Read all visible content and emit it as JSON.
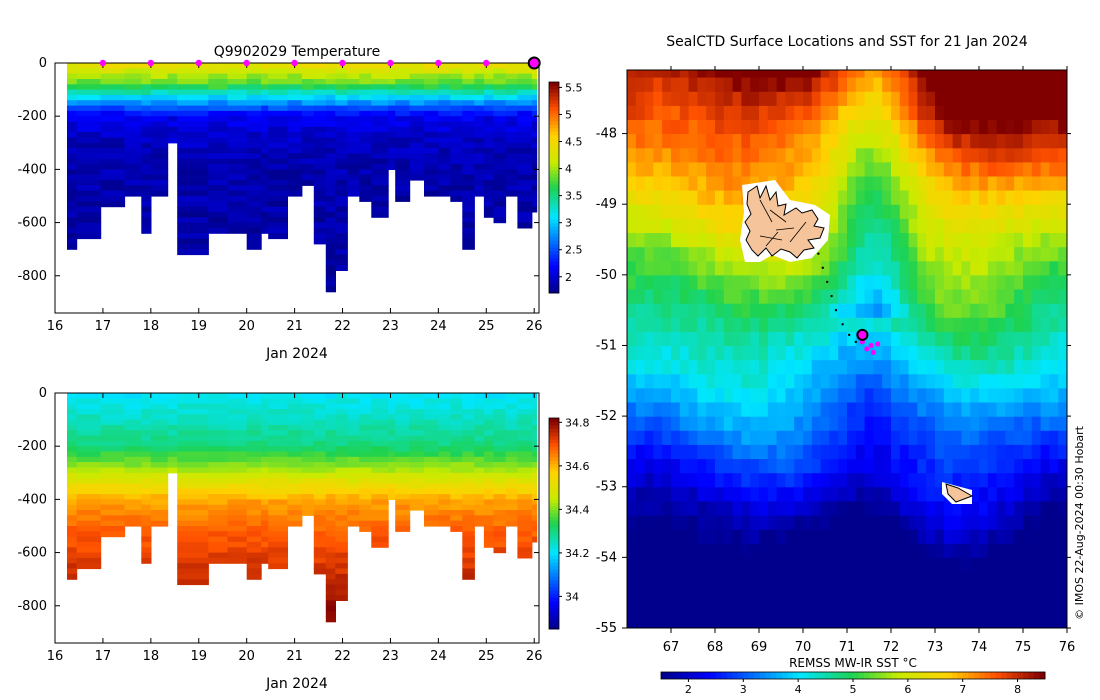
{
  "chart_data": [
    {
      "type": "heatmap",
      "id": "temperature",
      "title": "Q9902029  Temperature",
      "xlabel": "Jan 2024",
      "ylabel": "",
      "xlim": [
        16,
        26.1
      ],
      "ylim": [
        -940,
        0
      ],
      "xticks": [
        "16",
        "17",
        "18",
        "19",
        "20",
        "21",
        "22",
        "23",
        "24",
        "25",
        "26"
      ],
      "yticks": [
        "0",
        "-200",
        "-400",
        "-600",
        "-800"
      ],
      "colorbar": {
        "min": 1.7,
        "max": 5.6,
        "ticks": [
          "2",
          "2.5",
          "3",
          "3.5",
          "4",
          "4.5",
          "5",
          "5.5"
        ],
        "tick_values": [
          2,
          2.5,
          3,
          3.5,
          4,
          4.5,
          5,
          5.5
        ]
      },
      "marker_days": [
        17,
        18,
        19,
        20,
        21,
        22,
        23,
        24,
        25
      ],
      "current_marker_day": 26,
      "profile_starts": [
        16.25,
        16.45,
        16.95,
        17.45,
        17.8,
        18.0,
        18.35,
        18.55,
        19.2,
        19.6,
        20.0,
        20.3,
        20.45,
        20.85,
        21.15,
        21.4,
        21.65,
        21.85,
        22.1,
        22.35,
        22.6,
        22.95,
        23.1,
        23.4,
        23.7,
        24.0,
        24.25,
        24.5,
        24.75,
        24.95,
        25.15,
        25.4,
        25.65,
        25.95
      ],
      "profile_depths": [
        700,
        650,
        540,
        500,
        630,
        500,
        300,
        720,
        630,
        640,
        700,
        630,
        650,
        500,
        460,
        680,
        850,
        780,
        500,
        520,
        580,
        400,
        510,
        440,
        500,
        500,
        520,
        700,
        490,
        580,
        600,
        500,
        620,
        560
      ],
      "temperature_profile_depths": [
        0,
        40,
        80,
        120,
        160,
        200,
        300,
        400,
        600,
        900
      ],
      "temperature_profile_values": [
        4.5,
        4.1,
        3.8,
        3.2,
        2.6,
        2.1,
        1.9,
        1.85,
        1.8,
        1.75
      ]
    },
    {
      "type": "heatmap",
      "id": "salinity",
      "title": "",
      "xlabel": "Jan 2024",
      "ylabel": "",
      "xlim": [
        16,
        26.1
      ],
      "ylim": [
        -940,
        0
      ],
      "xticks": [
        "16",
        "17",
        "18",
        "19",
        "20",
        "21",
        "22",
        "23",
        "24",
        "25",
        "26"
      ],
      "yticks": [
        "0",
        "-200",
        "-400",
        "-600",
        "-800"
      ],
      "colorbar": {
        "min": 33.85,
        "max": 34.82,
        "ticks": [
          "34",
          "34.2",
          "34.4",
          "34.6",
          "34.8"
        ],
        "tick_values": [
          34,
          34.2,
          34.4,
          34.6,
          34.8
        ]
      },
      "salinity_profile_depths": [
        0,
        100,
        200,
        300,
        400,
        500,
        600,
        700,
        800,
        900
      ],
      "salinity_profile_values": [
        34.2,
        34.25,
        34.3,
        34.45,
        34.62,
        34.68,
        34.72,
        34.76,
        34.8,
        34.82
      ]
    },
    {
      "type": "heatmap",
      "id": "sst_map",
      "title": "SealCTD Surface Locations and SST for 21 Jan 2024",
      "xlabel": "REMSS MW-IR SST °C",
      "xlim": [
        66,
        76
      ],
      "ylim": [
        -55,
        -47.1
      ],
      "xticks": [
        "67",
        "68",
        "69",
        "70",
        "71",
        "72",
        "73",
        "74",
        "75",
        "76"
      ],
      "yticks": [
        "-48",
        "-49",
        "-50",
        "-51",
        "-52",
        "-53",
        "-54",
        "-55"
      ],
      "colorbar": {
        "min": 1.5,
        "max": 8.5,
        "ticks": [
          "2",
          "3",
          "4",
          "5",
          "6",
          "7",
          "8"
        ],
        "tick_values": [
          2,
          3,
          4,
          5,
          6,
          7,
          8
        ]
      },
      "track": [
        [
          70.35,
          -49.7
        ],
        [
          70.45,
          -49.9
        ],
        [
          70.55,
          -50.1
        ],
        [
          70.65,
          -50.3
        ],
        [
          70.75,
          -50.5
        ],
        [
          70.9,
          -50.7
        ],
        [
          71.05,
          -50.85
        ],
        [
          71.2,
          -50.95
        ]
      ],
      "recent_positions": [
        [
          71.35,
          -50.95
        ],
        [
          71.45,
          -51.05
        ],
        [
          71.55,
          -51.0
        ],
        [
          71.6,
          -51.1
        ],
        [
          71.7,
          -50.98
        ]
      ],
      "current_position": [
        71.35,
        -50.85
      ]
    }
  ],
  "credit": "© IMOS 22-Aug-2024 00:30 Hobart"
}
